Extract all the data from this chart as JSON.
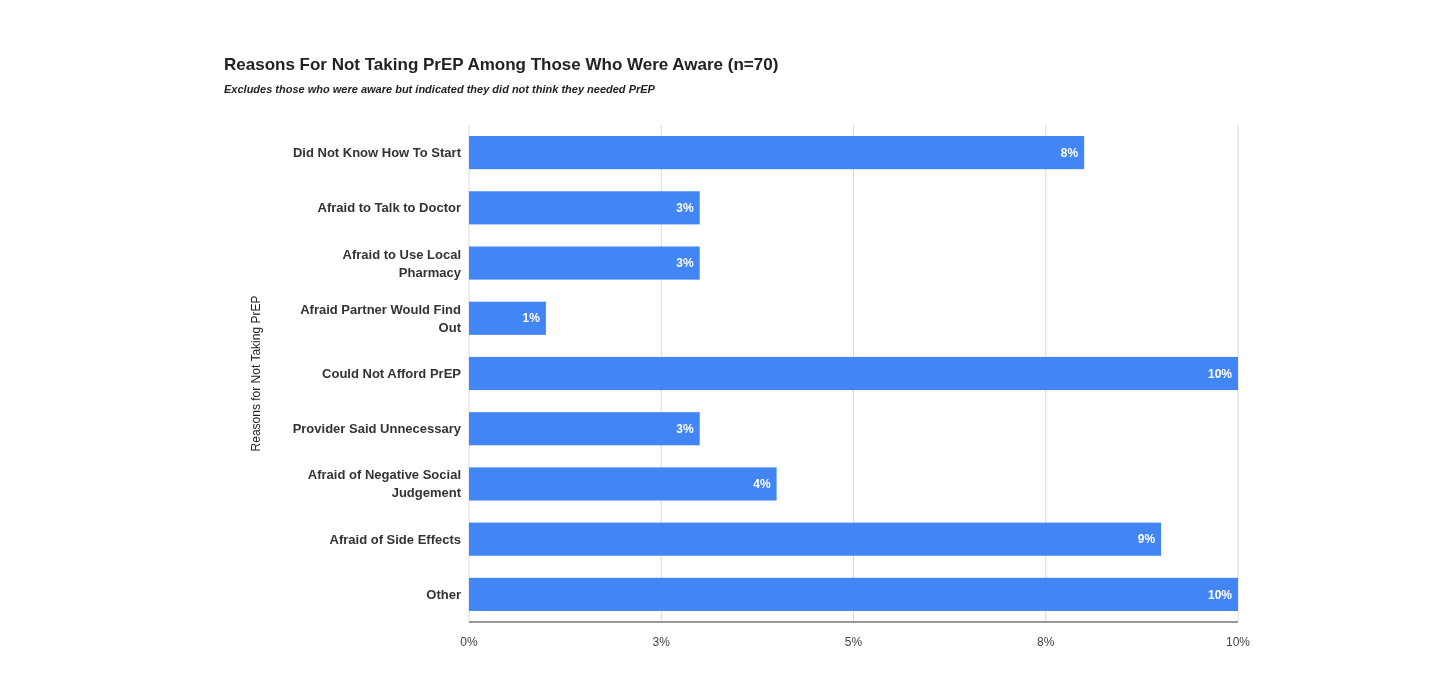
{
  "chart_data": {
    "type": "bar",
    "orientation": "horizontal",
    "title": "Reasons For Not Taking PrEP Among Those Who Were Aware (n=70)",
    "subtitle": "Excludes those who were aware but indicated they did not think they needed PrEP",
    "ylabel": "Reasons for Not Taking PrEP",
    "categories": [
      "Did Not Know How To Start",
      "Afraid to Talk to Doctor",
      "Afraid to Use Local Pharmacy",
      "Afraid Partner Would Find Out",
      "Could Not Afford PrEP",
      "Provider Said Unnecessary",
      "Afraid of Negative Social Judgement",
      "Afraid of Side Effects",
      "Other"
    ],
    "values": [
      8,
      3,
      3,
      1,
      10,
      3,
      4,
      9,
      10
    ],
    "value_labels": [
      "8%",
      "3%",
      "3%",
      "1%",
      "10%",
      "3%",
      "4%",
      "9%",
      "10%"
    ],
    "color": "#4285f4",
    "xlim": [
      0,
      10
    ],
    "xticks": [
      {
        "value": 0,
        "label": "0%"
      },
      {
        "value": 2.5,
        "label": "3%"
      },
      {
        "value": 5,
        "label": "5%"
      },
      {
        "value": 7.5,
        "label": "8%"
      },
      {
        "value": 10,
        "label": "10%"
      }
    ],
    "grid": "x"
  }
}
